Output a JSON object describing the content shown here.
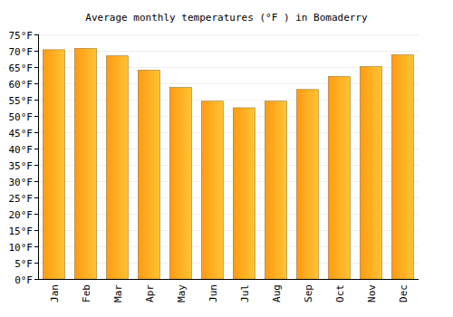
{
  "chart_data": {
    "type": "bar",
    "title": "Average monthly temperatures (°F ) in Bomaderry",
    "categories": [
      "Jan",
      "Feb",
      "Mar",
      "Apr",
      "May",
      "Jun",
      "Jul",
      "Aug",
      "Sep",
      "Oct",
      "Nov",
      "Dec"
    ],
    "values": [
      70.3,
      70.7,
      68.4,
      64.0,
      58.7,
      54.5,
      52.5,
      54.5,
      58.1,
      62.1,
      65.1,
      68.7
    ],
    "color": "#ffa31a",
    "ylim": [
      0,
      75
    ],
    "yticks": [
      {
        "value": 0,
        "label": "0°F"
      },
      {
        "value": 5,
        "label": "5°F"
      },
      {
        "value": 10,
        "label": "10°F"
      },
      {
        "value": 15,
        "label": "15°F"
      },
      {
        "value": 20,
        "label": "20°F"
      },
      {
        "value": 25,
        "label": "25°F"
      },
      {
        "value": 30,
        "label": "30°F"
      },
      {
        "value": 35,
        "label": "35°F"
      },
      {
        "value": 40,
        "label": "40°F"
      },
      {
        "value": 45,
        "label": "45°F"
      },
      {
        "value": 50,
        "label": "50°F"
      },
      {
        "value": 55,
        "label": "55°F"
      },
      {
        "value": 60,
        "label": "60°F"
      },
      {
        "value": 65,
        "label": "65°F"
      },
      {
        "value": 70,
        "label": "70°F"
      },
      {
        "value": 75,
        "label": "75°F"
      }
    ],
    "grid": true
  }
}
